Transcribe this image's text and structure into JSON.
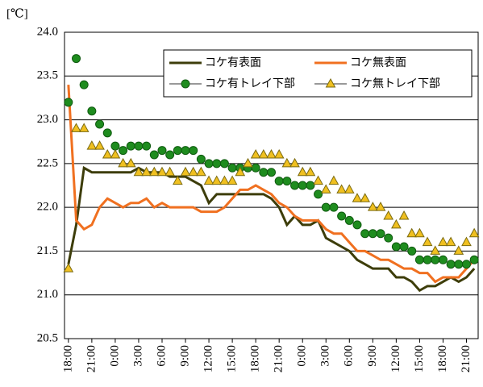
{
  "chart_data": {
    "type": "line",
    "y_unit": "[℃]",
    "categories": [
      "18:00",
      null,
      null,
      "21:00",
      null,
      null,
      "0:00",
      null,
      null,
      "3:00",
      null,
      null,
      "6:00",
      null,
      null,
      "9:00",
      null,
      null,
      "12:00",
      null,
      null,
      "15:00",
      null,
      null,
      "18:00",
      null,
      null,
      "21:00",
      null,
      null,
      "0:00",
      null,
      null,
      "3:00",
      null,
      null,
      "6:00",
      null,
      null,
      "9:00",
      null,
      null,
      "12:00",
      null,
      null,
      "15:00",
      null,
      null,
      "18:00",
      null,
      null,
      "21:00",
      null
    ],
    "series": [
      {
        "name": "コケ有表面",
        "color": "#3d3d0a",
        "marker": null,
        "values": [
          21.35,
          21.8,
          22.45,
          22.4,
          22.4,
          22.4,
          22.4,
          22.4,
          22.4,
          22.45,
          22.4,
          22.4,
          22.4,
          22.35,
          22.35,
          22.35,
          22.3,
          22.25,
          22.05,
          22.15,
          22.15,
          22.15,
          22.15,
          22.15,
          22.15,
          22.15,
          22.1,
          22.0,
          21.8,
          21.9,
          21.8,
          21.8,
          21.85,
          21.65,
          21.6,
          21.55,
          21.5,
          21.4,
          21.35,
          21.3,
          21.3,
          21.3,
          21.2,
          21.2,
          21.15,
          21.05,
          21.1,
          21.1,
          21.15,
          21.2,
          21.15,
          21.2,
          21.3
        ]
      },
      {
        "name": "コケ無表面",
        "color": "#f07020",
        "marker": null,
        "values": [
          23.4,
          21.85,
          21.75,
          21.8,
          22.0,
          22.1,
          22.05,
          22.0,
          22.05,
          22.05,
          22.1,
          22.0,
          22.05,
          22.0,
          22.0,
          22.0,
          22.0,
          21.95,
          21.95,
          21.95,
          22.0,
          22.1,
          22.2,
          22.2,
          22.25,
          22.2,
          22.15,
          22.05,
          22.0,
          21.9,
          21.85,
          21.85,
          21.85,
          21.75,
          21.7,
          21.7,
          21.6,
          21.5,
          21.5,
          21.45,
          21.4,
          21.4,
          21.35,
          21.3,
          21.3,
          21.25,
          21.25,
          21.15,
          21.2,
          21.2,
          21.2,
          21.3,
          21.4
        ]
      },
      {
        "name": "コケ有トレイ下部",
        "color": "#1e8c1e",
        "marker": "circle",
        "values": [
          23.2,
          23.7,
          23.4,
          23.1,
          22.95,
          22.85,
          22.7,
          22.65,
          22.7,
          22.7,
          22.7,
          22.6,
          22.65,
          22.6,
          22.65,
          22.65,
          22.65,
          22.55,
          22.5,
          22.5,
          22.5,
          22.45,
          22.45,
          22.45,
          22.45,
          22.4,
          22.4,
          22.3,
          22.3,
          22.25,
          22.25,
          22.25,
          22.15,
          22.0,
          22.0,
          21.9,
          21.85,
          21.8,
          21.7,
          21.7,
          21.7,
          21.65,
          21.55,
          21.55,
          21.5,
          21.4,
          21.4,
          21.4,
          21.4,
          21.35,
          21.35,
          21.35,
          21.4
        ]
      },
      {
        "name": "コケ無トレイ下部",
        "color": "#f0c020",
        "marker": "triangle",
        "values": [
          21.3,
          22.9,
          22.9,
          22.7,
          22.7,
          22.6,
          22.6,
          22.5,
          22.5,
          22.4,
          22.4,
          22.4,
          22.4,
          22.4,
          22.3,
          22.4,
          22.4,
          22.4,
          22.3,
          22.3,
          22.3,
          22.3,
          22.4,
          22.5,
          22.6,
          22.6,
          22.6,
          22.6,
          22.5,
          22.5,
          22.4,
          22.4,
          22.3,
          22.2,
          22.3,
          22.2,
          22.2,
          22.1,
          22.1,
          22.0,
          22.0,
          21.9,
          21.8,
          21.9,
          21.7,
          21.7,
          21.6,
          21.5,
          21.6,
          21.6,
          21.5,
          21.6,
          21.7
        ]
      }
    ],
    "ylim": [
      20.5,
      24.0
    ],
    "yticks": [
      {
        "value": 20.5,
        "label": "20.5"
      },
      {
        "value": 21,
        "label": "21.0"
      },
      {
        "value": 21.5,
        "label": "21.5"
      },
      {
        "value": 22,
        "label": "22.0"
      },
      {
        "value": 22.5,
        "label": "22.5"
      },
      {
        "value": 23,
        "label": "23.0"
      },
      {
        "value": 23.5,
        "label": "23.5"
      },
      {
        "value": 24,
        "label": "24.0"
      }
    ],
    "grid": true,
    "legend": "top-right"
  }
}
